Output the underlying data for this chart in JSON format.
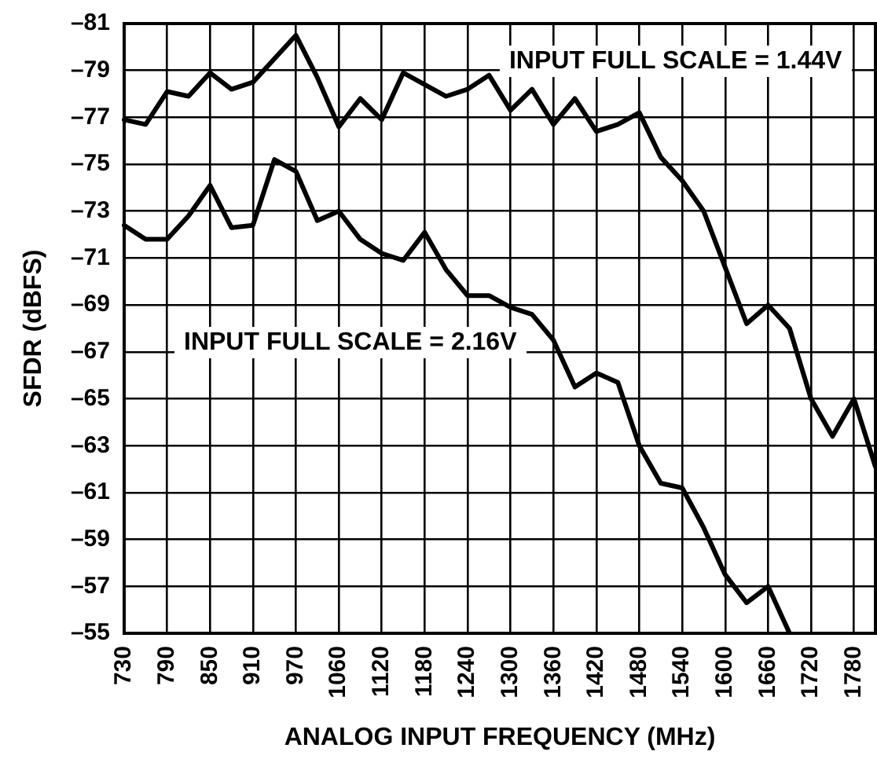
{
  "chart_data": {
    "type": "line",
    "xlabel": "ANALOG INPUT FREQUENCY (MHz)",
    "ylabel": "SFDR (dBFS)",
    "categories": [
      "730",
      null,
      "790",
      null,
      "850",
      null,
      "910",
      null,
      "970",
      null,
      "1060",
      null,
      "1120",
      null,
      "1180",
      null,
      "1240",
      null,
      "1300",
      null,
      "1360",
      null,
      "1420",
      null,
      "1480",
      null,
      "1540",
      null,
      "1600",
      null,
      "1660",
      null,
      "1720",
      null,
      "1780",
      null
    ],
    "ylim": [
      -55,
      -81
    ],
    "yticks": [
      {
        "value": -81,
        "label": "–81"
      },
      {
        "value": -79,
        "label": "–79"
      },
      {
        "value": -77,
        "label": "–77"
      },
      {
        "value": -75,
        "label": "–75"
      },
      {
        "value": -73,
        "label": "–73"
      },
      {
        "value": -71,
        "label": "–71"
      },
      {
        "value": -69,
        "label": "–69"
      },
      {
        "value": -67,
        "label": "–67"
      },
      {
        "value": -65,
        "label": "–65"
      },
      {
        "value": -63,
        "label": "–63"
      },
      {
        "value": -61,
        "label": "–61"
      },
      {
        "value": -59,
        "label": "–59"
      },
      {
        "value": -57,
        "label": "–57"
      },
      {
        "value": -55,
        "label": "–55"
      }
    ],
    "grid": true,
    "marker": "none",
    "line_style": "solid",
    "series": [
      {
        "name": "INPUT FULL SCALE = 1.44V",
        "color": "#000000",
        "values": [
          -76.9,
          -76.7,
          -78.1,
          -77.9,
          -78.9,
          -78.2,
          -78.5,
          -79.5,
          -80.5,
          -78.7,
          -76.6,
          -77.8,
          -76.9,
          -78.9,
          -78.4,
          -77.9,
          -78.2,
          -78.8,
          -77.3,
          -78.2,
          -76.7,
          -77.8,
          -76.4,
          -76.7,
          -77.2,
          -75.3,
          -74.3,
          -73.0,
          -70.6,
          -68.2,
          -69.0,
          -68.0,
          -65.0,
          -63.4,
          -65.0,
          -62.1
        ]
      },
      {
        "name": "INPUT FULL SCALE = 2.16V",
        "color": "#000000",
        "values": [
          -72.4,
          -71.8,
          -71.8,
          -72.8,
          -74.1,
          -72.3,
          -72.4,
          -75.2,
          -74.7,
          -72.6,
          -73.0,
          -71.8,
          -71.2,
          -70.9,
          -72.1,
          -70.5,
          -69.4,
          -69.4,
          -68.9,
          -68.6,
          -67.5,
          -65.5,
          -66.1,
          -65.7,
          -63.0,
          -61.4,
          -61.2,
          -59.5,
          -57.5,
          -56.3,
          -57.0,
          -55.0,
          null,
          null,
          null,
          null
        ]
      }
    ]
  }
}
